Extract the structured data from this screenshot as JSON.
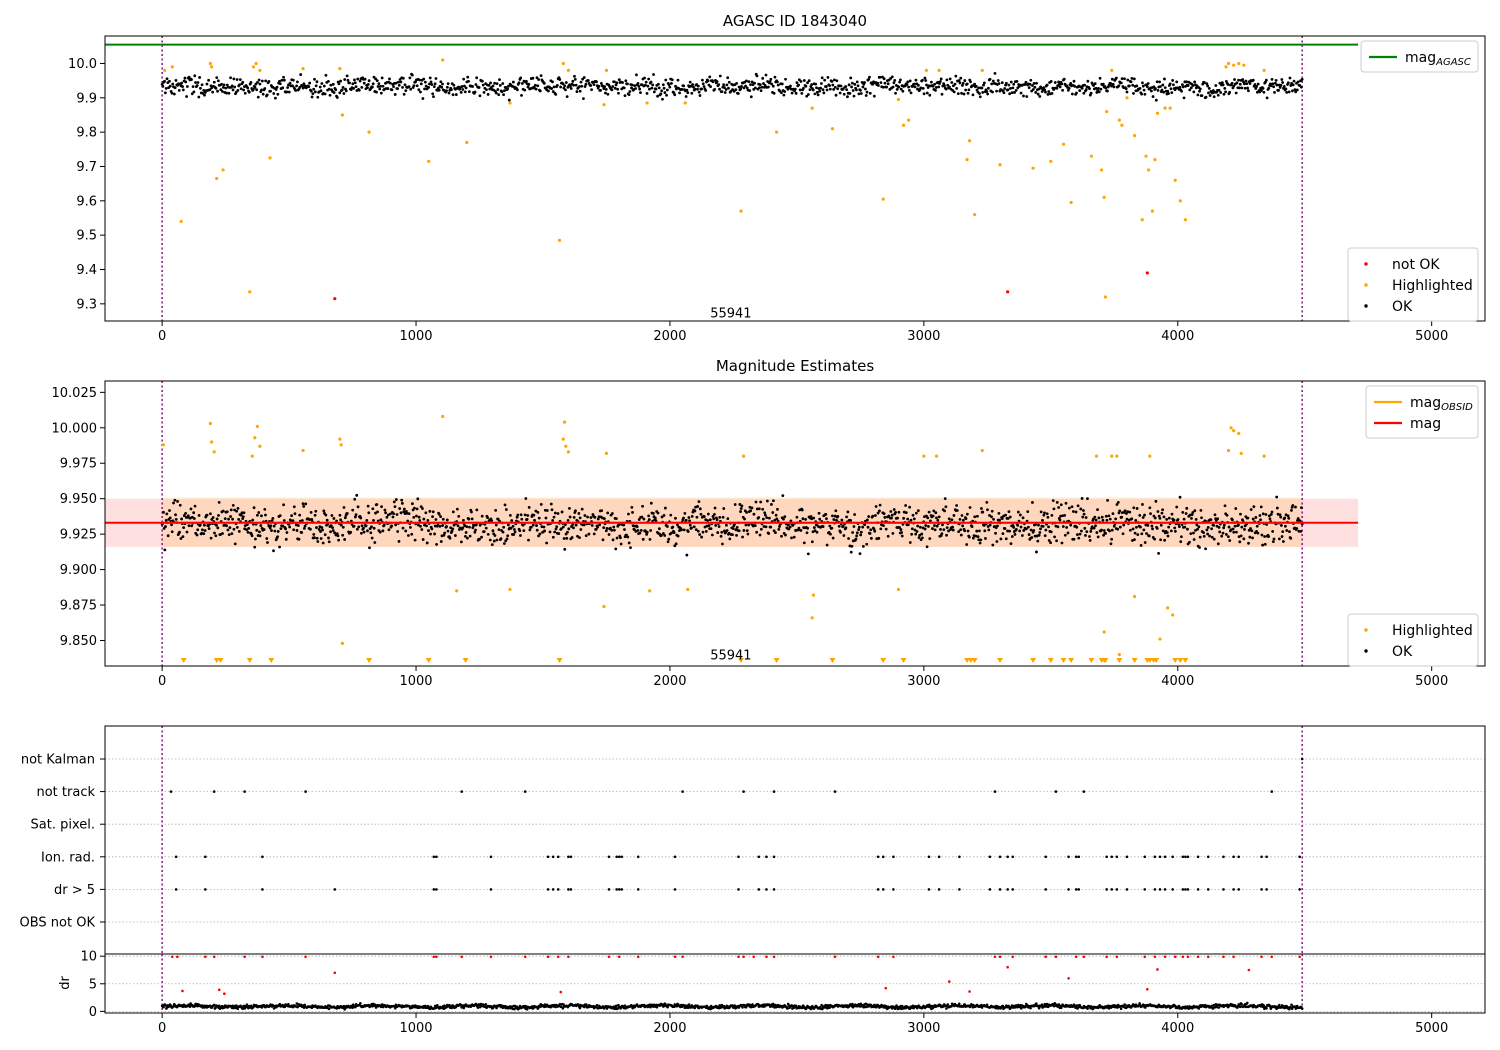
{
  "chart_data": [
    {
      "type": "scatter",
      "title": "AGASC ID 1843040",
      "xlim": [
        -225,
        5210
      ],
      "ylim": [
        9.25,
        10.08
      ],
      "x_ticks": [
        0,
        1000,
        2000,
        3000,
        4000,
        5000
      ],
      "y_ticks": [
        9.3,
        9.4,
        9.5,
        9.6,
        9.7,
        9.8,
        9.9,
        10.0
      ],
      "y_tick_labels": [
        "9.3",
        "9.4",
        "9.5",
        "9.6",
        "9.7",
        "9.8",
        "9.9",
        "10.0"
      ],
      "x_tick_labels": [
        "0",
        "1000",
        "2000",
        "3000",
        "4000",
        "5000"
      ],
      "annotation": {
        "text": "55941",
        "x": 2240,
        "y": 9.275
      },
      "vlines": [
        0,
        4490
      ],
      "series": [
        {
          "name": "mag_AGASC",
          "kind": "hline",
          "y": 10.055,
          "x_range": [
            -225,
            4710
          ],
          "color": "#008000"
        },
        {
          "name": "not OK",
          "color": "#ff0000",
          "points": [
            [
              680,
              9.315
            ],
            [
              3330,
              9.335
            ],
            [
              3880,
              9.39
            ]
          ]
        },
        {
          "name": "Highlighted",
          "color": "#ffa500",
          "points": [
            [
              10,
              9.98
            ],
            [
              40,
              9.99
            ],
            [
              75,
              9.54
            ],
            [
              190,
              10.0
            ],
            [
              195,
              9.99
            ],
            [
              215,
              9.665
            ],
            [
              240,
              9.69
            ],
            [
              345,
              9.335
            ],
            [
              360,
              9.99
            ],
            [
              370,
              10.0
            ],
            [
              385,
              9.98
            ],
            [
              425,
              9.725
            ],
            [
              555,
              9.985
            ],
            [
              700,
              9.985
            ],
            [
              710,
              9.85
            ],
            [
              815,
              9.8
            ],
            [
              1050,
              9.715
            ],
            [
              1105,
              10.01
            ],
            [
              1200,
              9.77
            ],
            [
              1370,
              9.885
            ],
            [
              1565,
              9.485
            ],
            [
              1580,
              10.0
            ],
            [
              1600,
              9.98
            ],
            [
              1740,
              9.88
            ],
            [
              1750,
              9.98
            ],
            [
              1910,
              9.885
            ],
            [
              2060,
              9.885
            ],
            [
              2280,
              9.57
            ],
            [
              2420,
              9.8
            ],
            [
              2560,
              9.87
            ],
            [
              2640,
              9.81
            ],
            [
              2840,
              9.605
            ],
            [
              2900,
              9.895
            ],
            [
              2920,
              9.82
            ],
            [
              2940,
              9.835
            ],
            [
              3010,
              9.98
            ],
            [
              3060,
              9.98
            ],
            [
              3170,
              9.72
            ],
            [
              3180,
              9.775
            ],
            [
              3200,
              9.56
            ],
            [
              3230,
              9.98
            ],
            [
              3300,
              9.705
            ],
            [
              3430,
              9.695
            ],
            [
              3500,
              9.715
            ],
            [
              3550,
              9.765
            ],
            [
              3580,
              9.595
            ],
            [
              3660,
              9.73
            ],
            [
              3700,
              9.69
            ],
            [
              3710,
              9.61
            ],
            [
              3715,
              9.32
            ],
            [
              3720,
              9.86
            ],
            [
              3740,
              9.98
            ],
            [
              3770,
              9.835
            ],
            [
              3780,
              9.82
            ],
            [
              3800,
              9.9
            ],
            [
              3830,
              9.79
            ],
            [
              3860,
              9.545
            ],
            [
              3875,
              9.73
            ],
            [
              3885,
              9.69
            ],
            [
              3900,
              9.57
            ],
            [
              3910,
              9.72
            ],
            [
              3920,
              9.855
            ],
            [
              3950,
              9.87
            ],
            [
              3970,
              9.87
            ],
            [
              3990,
              9.66
            ],
            [
              4010,
              9.6
            ],
            [
              4030,
              9.545
            ],
            [
              4190,
              9.99
            ],
            [
              4200,
              10.0
            ],
            [
              4220,
              9.995
            ],
            [
              4240,
              10.0
            ],
            [
              4260,
              9.995
            ],
            [
              4340,
              9.98
            ]
          ]
        }
      ],
      "ok_series": {
        "name": "OK",
        "color": "#000000",
        "x_range": [
          0,
          4490
        ],
        "y_center": 9.932,
        "y_spread": 0.035
      },
      "legend": {
        "position": "top-right"
      },
      "legend2": {
        "position": "bottom-right"
      }
    },
    {
      "type": "scatter",
      "title": "Magnitude Estimates",
      "xlim": [
        -225,
        5210
      ],
      "ylim": [
        9.832,
        10.033
      ],
      "x_ticks": [
        0,
        1000,
        2000,
        3000,
        4000,
        5000
      ],
      "y_ticks": [
        9.85,
        9.875,
        9.9,
        9.925,
        9.95,
        9.975,
        10.0,
        10.025
      ],
      "y_tick_labels": [
        "9.850",
        "9.875",
        "9.900",
        "9.925",
        "9.950",
        "9.975",
        "10.000",
        "10.025"
      ],
      "x_tick_labels": [
        "0",
        "1000",
        "2000",
        "3000",
        "4000",
        "5000"
      ],
      "annotation": {
        "text": "55941",
        "x": 2240,
        "y": 9.84
      },
      "vlines": [
        0,
        4490
      ],
      "mag": {
        "name": "mag",
        "y": 9.933,
        "band": [
          9.916,
          9.95
        ],
        "x_range": [
          -225,
          4710
        ],
        "color": "#ff0000"
      },
      "mag_obsid": {
        "name": "mag_OBSID",
        "y": 9.933,
        "band": [
          9.916,
          9.951
        ],
        "x_range": [
          0,
          4490
        ],
        "color": "#ffa500"
      },
      "ok_series": {
        "name": "OK",
        "color": "#000000",
        "x_range": [
          0,
          4490
        ],
        "y_center": 9.932,
        "y_spread": 0.018
      },
      "highlighted": {
        "name": "Highlighted",
        "color": "#ffa500",
        "points": [
          [
            5,
            9.988
          ],
          [
            190,
            10.003
          ],
          [
            195,
            9.99
          ],
          [
            205,
            9.983
          ],
          [
            355,
            9.98
          ],
          [
            365,
            9.993
          ],
          [
            375,
            10.001
          ],
          [
            385,
            9.987
          ],
          [
            555,
            9.984
          ],
          [
            700,
            9.992
          ],
          [
            705,
            9.988
          ],
          [
            710,
            9.848
          ],
          [
            1105,
            10.008
          ],
          [
            1160,
            9.885
          ],
          [
            1370,
            9.886
          ],
          [
            1580,
            9.992
          ],
          [
            1585,
            10.004
          ],
          [
            1590,
            9.987
          ],
          [
            1600,
            9.983
          ],
          [
            1740,
            9.874
          ],
          [
            1750,
            9.982
          ],
          [
            1920,
            9.885
          ],
          [
            2070,
            9.886
          ],
          [
            2290,
            9.98
          ],
          [
            2560,
            9.866
          ],
          [
            2565,
            9.882
          ],
          [
            2900,
            9.886
          ],
          [
            3000,
            9.98
          ],
          [
            3050,
            9.98
          ],
          [
            3230,
            9.984
          ],
          [
            3680,
            9.98
          ],
          [
            3710,
            9.856
          ],
          [
            3740,
            9.98
          ],
          [
            3760,
            9.98
          ],
          [
            3770,
            9.84
          ],
          [
            3830,
            9.881
          ],
          [
            3890,
            9.98
          ],
          [
            3930,
            9.851
          ],
          [
            3960,
            9.873
          ],
          [
            3980,
            9.868
          ],
          [
            4200,
            9.984
          ],
          [
            4210,
            10.0
          ],
          [
            4220,
            9.998
          ],
          [
            4240,
            9.996
          ],
          [
            4250,
            9.982
          ],
          [
            4340,
            9.98
          ]
        ]
      },
      "below_axis_markers": [
        85,
        215,
        230,
        345,
        430,
        815,
        1050,
        1195,
        1565,
        2280,
        2420,
        2640,
        2840,
        2920,
        3170,
        3185,
        3200,
        3300,
        3430,
        3500,
        3550,
        3580,
        3660,
        3700,
        3710,
        3715,
        3770,
        3830,
        3880,
        3890,
        3905,
        3915,
        3990,
        4010,
        4030
      ],
      "legend": {
        "position": "top-right"
      },
      "legend2": {
        "position": "bottom-right"
      }
    },
    {
      "type": "scatter",
      "title": "",
      "xlim": [
        -225,
        5210
      ],
      "flag_rows": [
        "not Kalman",
        "not track",
        "Sat. pixel.",
        "Ion. rad.",
        "dr > 5",
        "OBS not OK"
      ],
      "flags": {
        "not Kalman": [
          4490
        ],
        "not track": [
          35,
          205,
          325,
          565,
          1180,
          1430,
          2050,
          2290,
          2410,
          2650,
          3280,
          3520,
          3630,
          4370
        ],
        "Sat. pixel.": [],
        "Ion. rad.": [
          55,
          170,
          395,
          1070,
          1080,
          1295,
          1520,
          1540,
          1560,
          1600,
          1610,
          1760,
          1790,
          1800,
          1810,
          1875,
          2020,
          2270,
          2350,
          2380,
          2410,
          2820,
          2840,
          2880,
          3020,
          3060,
          3140,
          3260,
          3300,
          3330,
          3350,
          3480,
          3570,
          3600,
          3610,
          3720,
          3740,
          3760,
          3800,
          3870,
          3910,
          3930,
          3950,
          3980,
          4020,
          4030,
          4040,
          4080,
          4120,
          4180,
          4220,
          4240,
          4330,
          4350,
          4480
        ],
        "dr > 5": [
          55,
          170,
          395,
          680,
          1070,
          1080,
          1295,
          1520,
          1540,
          1560,
          1600,
          1610,
          1760,
          1790,
          1800,
          1810,
          1875,
          2020,
          2270,
          2350,
          2380,
          2410,
          2820,
          2840,
          2880,
          3020,
          3060,
          3140,
          3260,
          3300,
          3330,
          3350,
          3480,
          3570,
          3600,
          3610,
          3720,
          3740,
          3760,
          3800,
          3870,
          3910,
          3930,
          3950,
          3980,
          4020,
          4030,
          4040,
          4080,
          4120,
          4180,
          4220,
          4240,
          4330,
          4350,
          4480
        ],
        "OBS not OK": []
      },
      "dr": {
        "ylabel": "dr",
        "ylim": [
          -0.3,
          10.4
        ],
        "y_ticks": [
          0,
          5,
          10
        ],
        "y_tick_labels": [
          "0",
          "5",
          "10"
        ],
        "x_ticks": [
          0,
          1000,
          2000,
          3000,
          4000,
          5000
        ],
        "x_tick_labels": [
          "0",
          "1000",
          "2000",
          "3000",
          "4000",
          "5000"
        ],
        "base": {
          "color": "#000000",
          "x_range": [
            0,
            4490
          ],
          "y_center": 0.9,
          "y_spread": 0.35
        },
        "red_points": [
          [
            40,
            9.9
          ],
          [
            60,
            9.9
          ],
          [
            80,
            3.7
          ],
          [
            170,
            9.9
          ],
          [
            205,
            9.9
          ],
          [
            225,
            3.9
          ],
          [
            245,
            3.2
          ],
          [
            325,
            9.9
          ],
          [
            395,
            9.9
          ],
          [
            565,
            9.9
          ],
          [
            680,
            7.0
          ],
          [
            1070,
            9.9
          ],
          [
            1080,
            9.9
          ],
          [
            1180,
            9.9
          ],
          [
            1295,
            9.9
          ],
          [
            1430,
            9.9
          ],
          [
            1520,
            9.9
          ],
          [
            1560,
            9.9
          ],
          [
            1570,
            3.5
          ],
          [
            1600,
            9.9
          ],
          [
            1760,
            9.9
          ],
          [
            1800,
            9.9
          ],
          [
            1875,
            9.9
          ],
          [
            2020,
            9.9
          ],
          [
            2050,
            9.9
          ],
          [
            2270,
            9.9
          ],
          [
            2290,
            9.9
          ],
          [
            2330,
            9.9
          ],
          [
            2380,
            9.9
          ],
          [
            2410,
            9.9
          ],
          [
            2650,
            9.9
          ],
          [
            2820,
            9.9
          ],
          [
            2850,
            4.2
          ],
          [
            2880,
            9.9
          ],
          [
            3100,
            5.4
          ],
          [
            3180,
            3.6
          ],
          [
            3280,
            9.9
          ],
          [
            3300,
            9.9
          ],
          [
            3330,
            8.0
          ],
          [
            3350,
            9.9
          ],
          [
            3480,
            9.9
          ],
          [
            3520,
            9.9
          ],
          [
            3570,
            6.0
          ],
          [
            3600,
            9.9
          ],
          [
            3630,
            9.9
          ],
          [
            3720,
            9.9
          ],
          [
            3760,
            9.9
          ],
          [
            3870,
            9.9
          ],
          [
            3880,
            4.0
          ],
          [
            3910,
            9.9
          ],
          [
            3920,
            7.6
          ],
          [
            3950,
            9.9
          ],
          [
            3990,
            9.9
          ],
          [
            4020,
            9.9
          ],
          [
            4040,
            9.9
          ],
          [
            4080,
            9.9
          ],
          [
            4120,
            9.9
          ],
          [
            4180,
            9.9
          ],
          [
            4220,
            9.9
          ],
          [
            4280,
            7.5
          ],
          [
            4330,
            9.9
          ],
          [
            4370,
            9.9
          ],
          [
            4480,
            9.9
          ]
        ]
      },
      "vlines": [
        0,
        4490
      ]
    }
  ],
  "legends": {
    "top1": [
      {
        "label": "mag",
        "sub": "AGASC",
        "color": "#008000"
      }
    ],
    "bottom1": [
      {
        "label": "not OK",
        "color": "#ff0000"
      },
      {
        "label": "Highlighted",
        "color": "#ffa500"
      },
      {
        "label": "OK",
        "color": "#000000"
      }
    ],
    "top2": [
      {
        "label": "mag",
        "sub": "OBSID",
        "color": "#ffa500"
      },
      {
        "label": "mag",
        "sub": "",
        "color": "#ff0000"
      }
    ],
    "bottom2": [
      {
        "label": "Highlighted",
        "color": "#ffa500"
      },
      {
        "label": "OK",
        "color": "#000000"
      }
    ]
  }
}
